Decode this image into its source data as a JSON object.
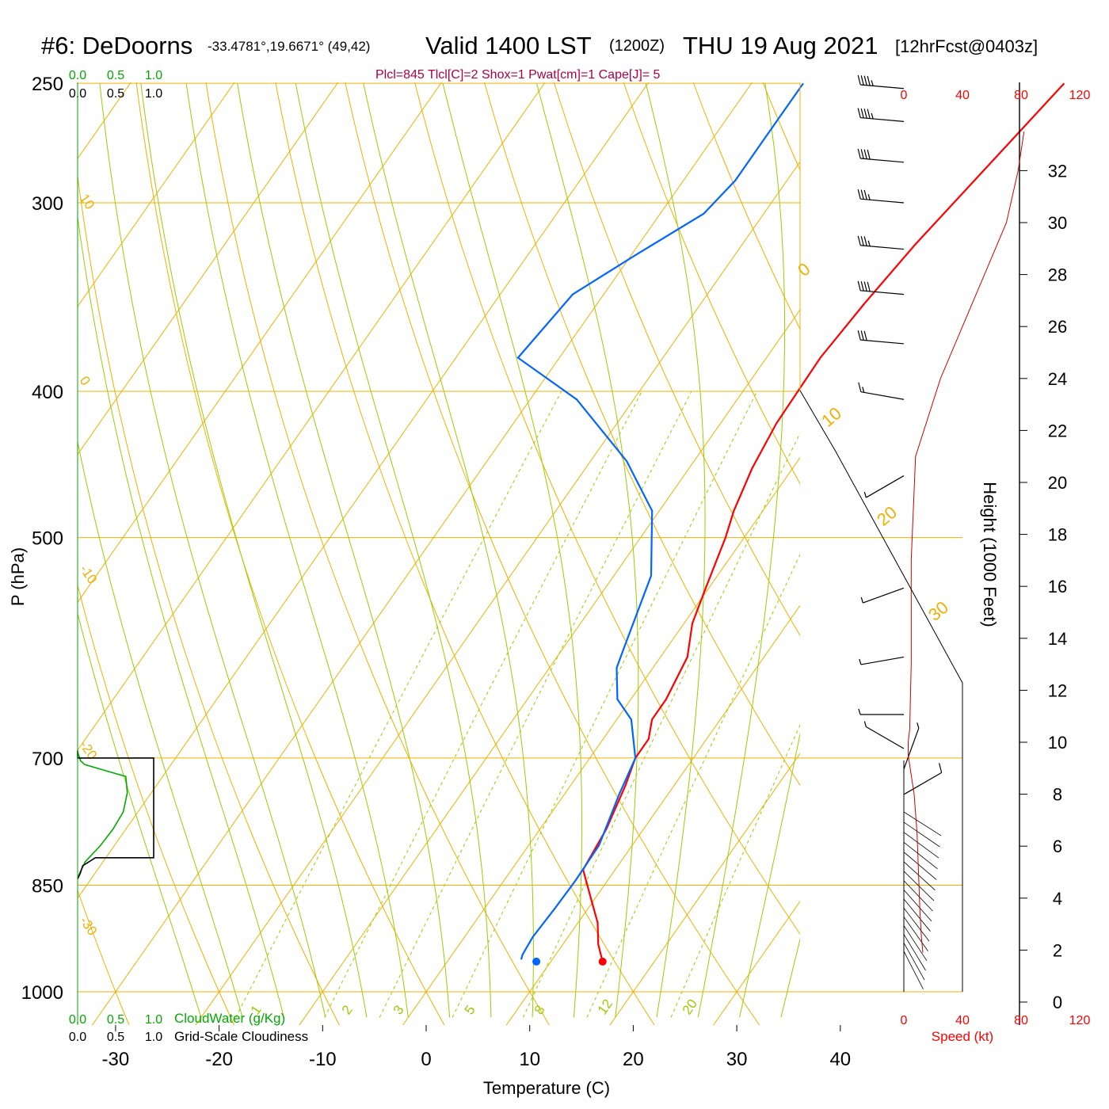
{
  "header": {
    "station": "#6: DeDoorns",
    "coords": "-33.4781°,19.6671° (49,42)",
    "valid_main": "Valid 1400 LST",
    "valid_utc": "(1200Z)",
    "date": "THU 19 Aug 2021",
    "forecast": "[12hrFcst@0403z]",
    "indices": "Plcl=845 Tlcl[C]=2 Shox=1 Pwat[cm]=1 Cape[J]= 5"
  },
  "colors": {
    "temperature": "#ff0000",
    "dewpoint": "#0066ff",
    "isotherm_adiabat": "#f0b000",
    "moist_adiabat": "#99cc00",
    "cloud_water": "#00aa00",
    "cloudiness": "#000000",
    "wind_speed": "#cc0000",
    "indices": "#aa0044"
  },
  "chart_data": {
    "type": "line",
    "title": "",
    "xlabel": "Temperature (C)",
    "ylabel": "P (hPa)",
    "x_ticks": [
      "-30",
      "-20",
      "-10",
      "0",
      "10",
      "20",
      "30",
      "40"
    ],
    "y_ticks": [
      "250",
      "300",
      "400",
      "500",
      "700",
      "850",
      "1000"
    ],
    "y_scale": "log",
    "isotherm_labels": [
      "10",
      "0",
      "-10",
      "-20",
      "-30"
    ],
    "adiabat_labels": [
      "0",
      "10",
      "20",
      "30"
    ],
    "mixing_ratio_labels": [
      "2",
      "3",
      "5",
      "8",
      "12",
      "20"
    ],
    "moist_adiabat_labels": [
      "1"
    ],
    "series": [
      {
        "name": "",
        "p": [
          250,
          280,
          320,
          350,
          380,
          420,
          450,
          480,
          500,
          540,
          570,
          600,
          640,
          660,
          680,
          700,
          730,
          780,
          830,
          870,
          900,
          930,
          955
        ],
        "t": [
          0.2,
          -1.4,
          -3.3,
          -4.2,
          -4.8,
          -4.6,
          -3.9,
          -2.8,
          -1.8,
          -0.3,
          0.8,
          2.6,
          3.4,
          3.4,
          4.4,
          4.4,
          5.3,
          6.4,
          6.9,
          9.8,
          11.9,
          13.4,
          15.0
        ]
      },
      {
        "name": "",
        "p": [
          250,
          275,
          290,
          305,
          325,
          345,
          380,
          405,
          445,
          480,
          530,
          590,
          610,
          640,
          660,
          700,
          740,
          800,
          845,
          880,
          920,
          945,
          952
        ],
        "t": [
          -25,
          -25,
          -25,
          -25.8,
          -29.6,
          -33,
          -34,
          -25.5,
          -16.5,
          -10.7,
          -6.4,
          -4.2,
          -3.5,
          -1.3,
          1.4,
          4.4,
          5.3,
          6.8,
          6.9,
          6.8,
          6.6,
          6.8,
          7.0
        ]
      }
    ],
    "surface_points": [
      {
        "t": 15.0,
        "p": 955
      },
      {
        "t": 8.6,
        "p": 955
      }
    ],
    "inset_top_labels": [
      "0.0",
      "0.5",
      "1.0"
    ],
    "inset_bottom_labels": [
      "0.0",
      "0.5",
      "1.0"
    ],
    "inset_legend": {
      "cloud_water": "CloudWater (g/Kg)",
      "cloudiness": "Grid-Scale Cloudiness"
    },
    "cloud_water": {
      "p": [
        693,
        697,
        703,
        707,
        712,
        720,
        738,
        760,
        780,
        800,
        820,
        840
      ],
      "v": [
        0.0,
        0.02,
        0.06,
        0.14,
        0.45,
        0.95,
        0.98,
        0.9,
        0.7,
        0.45,
        0.15,
        0.0
      ]
    },
    "cloudiness": {
      "p": [
        692,
        700,
        700,
        815,
        815,
        825,
        835,
        842
      ],
      "v": [
        0.0,
        0.0,
        1.5,
        1.5,
        0.35,
        0.1,
        0.05,
        0.0
      ]
    },
    "wind_speed_axis": {
      "top_labels": [
        "0",
        "40",
        "80",
        "120"
      ],
      "bottom_labels": [
        "0",
        "40",
        "80",
        "120"
      ],
      "xlabel": "Speed (kt)",
      "height_label": "Height (1000 Feet)",
      "height_ticks": [
        "0",
        "2",
        "4",
        "6",
        "8",
        "10",
        "12",
        "14",
        "16",
        "18",
        "20",
        "22",
        "24",
        "26",
        "28",
        "30",
        "32"
      ],
      "speed_kt": {
        "h_kft": [
          1.9,
          2.5,
          3.5,
          5.0,
          6.5,
          8.0,
          9.5,
          10.0,
          10.5,
          13.0,
          17.0,
          21.0,
          24.0,
          26.0,
          28.0,
          30.0,
          32.0,
          33.5
        ],
        "kt": [
          13,
          12,
          11,
          10,
          9,
          7,
          3,
          3,
          4,
          5,
          5,
          8,
          25,
          40,
          55,
          70,
          78,
          82
        ]
      }
    },
    "wind_barbs": [
      {
        "p": 252,
        "kt": 45,
        "dir": 275
      },
      {
        "p": 265,
        "kt": 45,
        "dir": 275
      },
      {
        "p": 282,
        "kt": 40,
        "dir": 275
      },
      {
        "p": 300,
        "kt": 35,
        "dir": 275
      },
      {
        "p": 322,
        "kt": 35,
        "dir": 275
      },
      {
        "p": 345,
        "kt": 40,
        "dir": 275
      },
      {
        "p": 372,
        "kt": 30,
        "dir": 275
      },
      {
        "p": 405,
        "kt": 15,
        "dir": 280
      },
      {
        "p": 455,
        "kt": 5,
        "dir": 240
      },
      {
        "p": 540,
        "kt": 5,
        "dir": 250
      },
      {
        "p": 600,
        "kt": 5,
        "dir": 260
      },
      {
        "p": 655,
        "kt": 5,
        "dir": 270
      },
      {
        "p": 690,
        "kt": 5,
        "dir": 300
      },
      {
        "p": 712,
        "kt": 5,
        "dir": 20
      },
      {
        "p": 740,
        "kt": 10,
        "dir": 60
      }
    ]
  }
}
